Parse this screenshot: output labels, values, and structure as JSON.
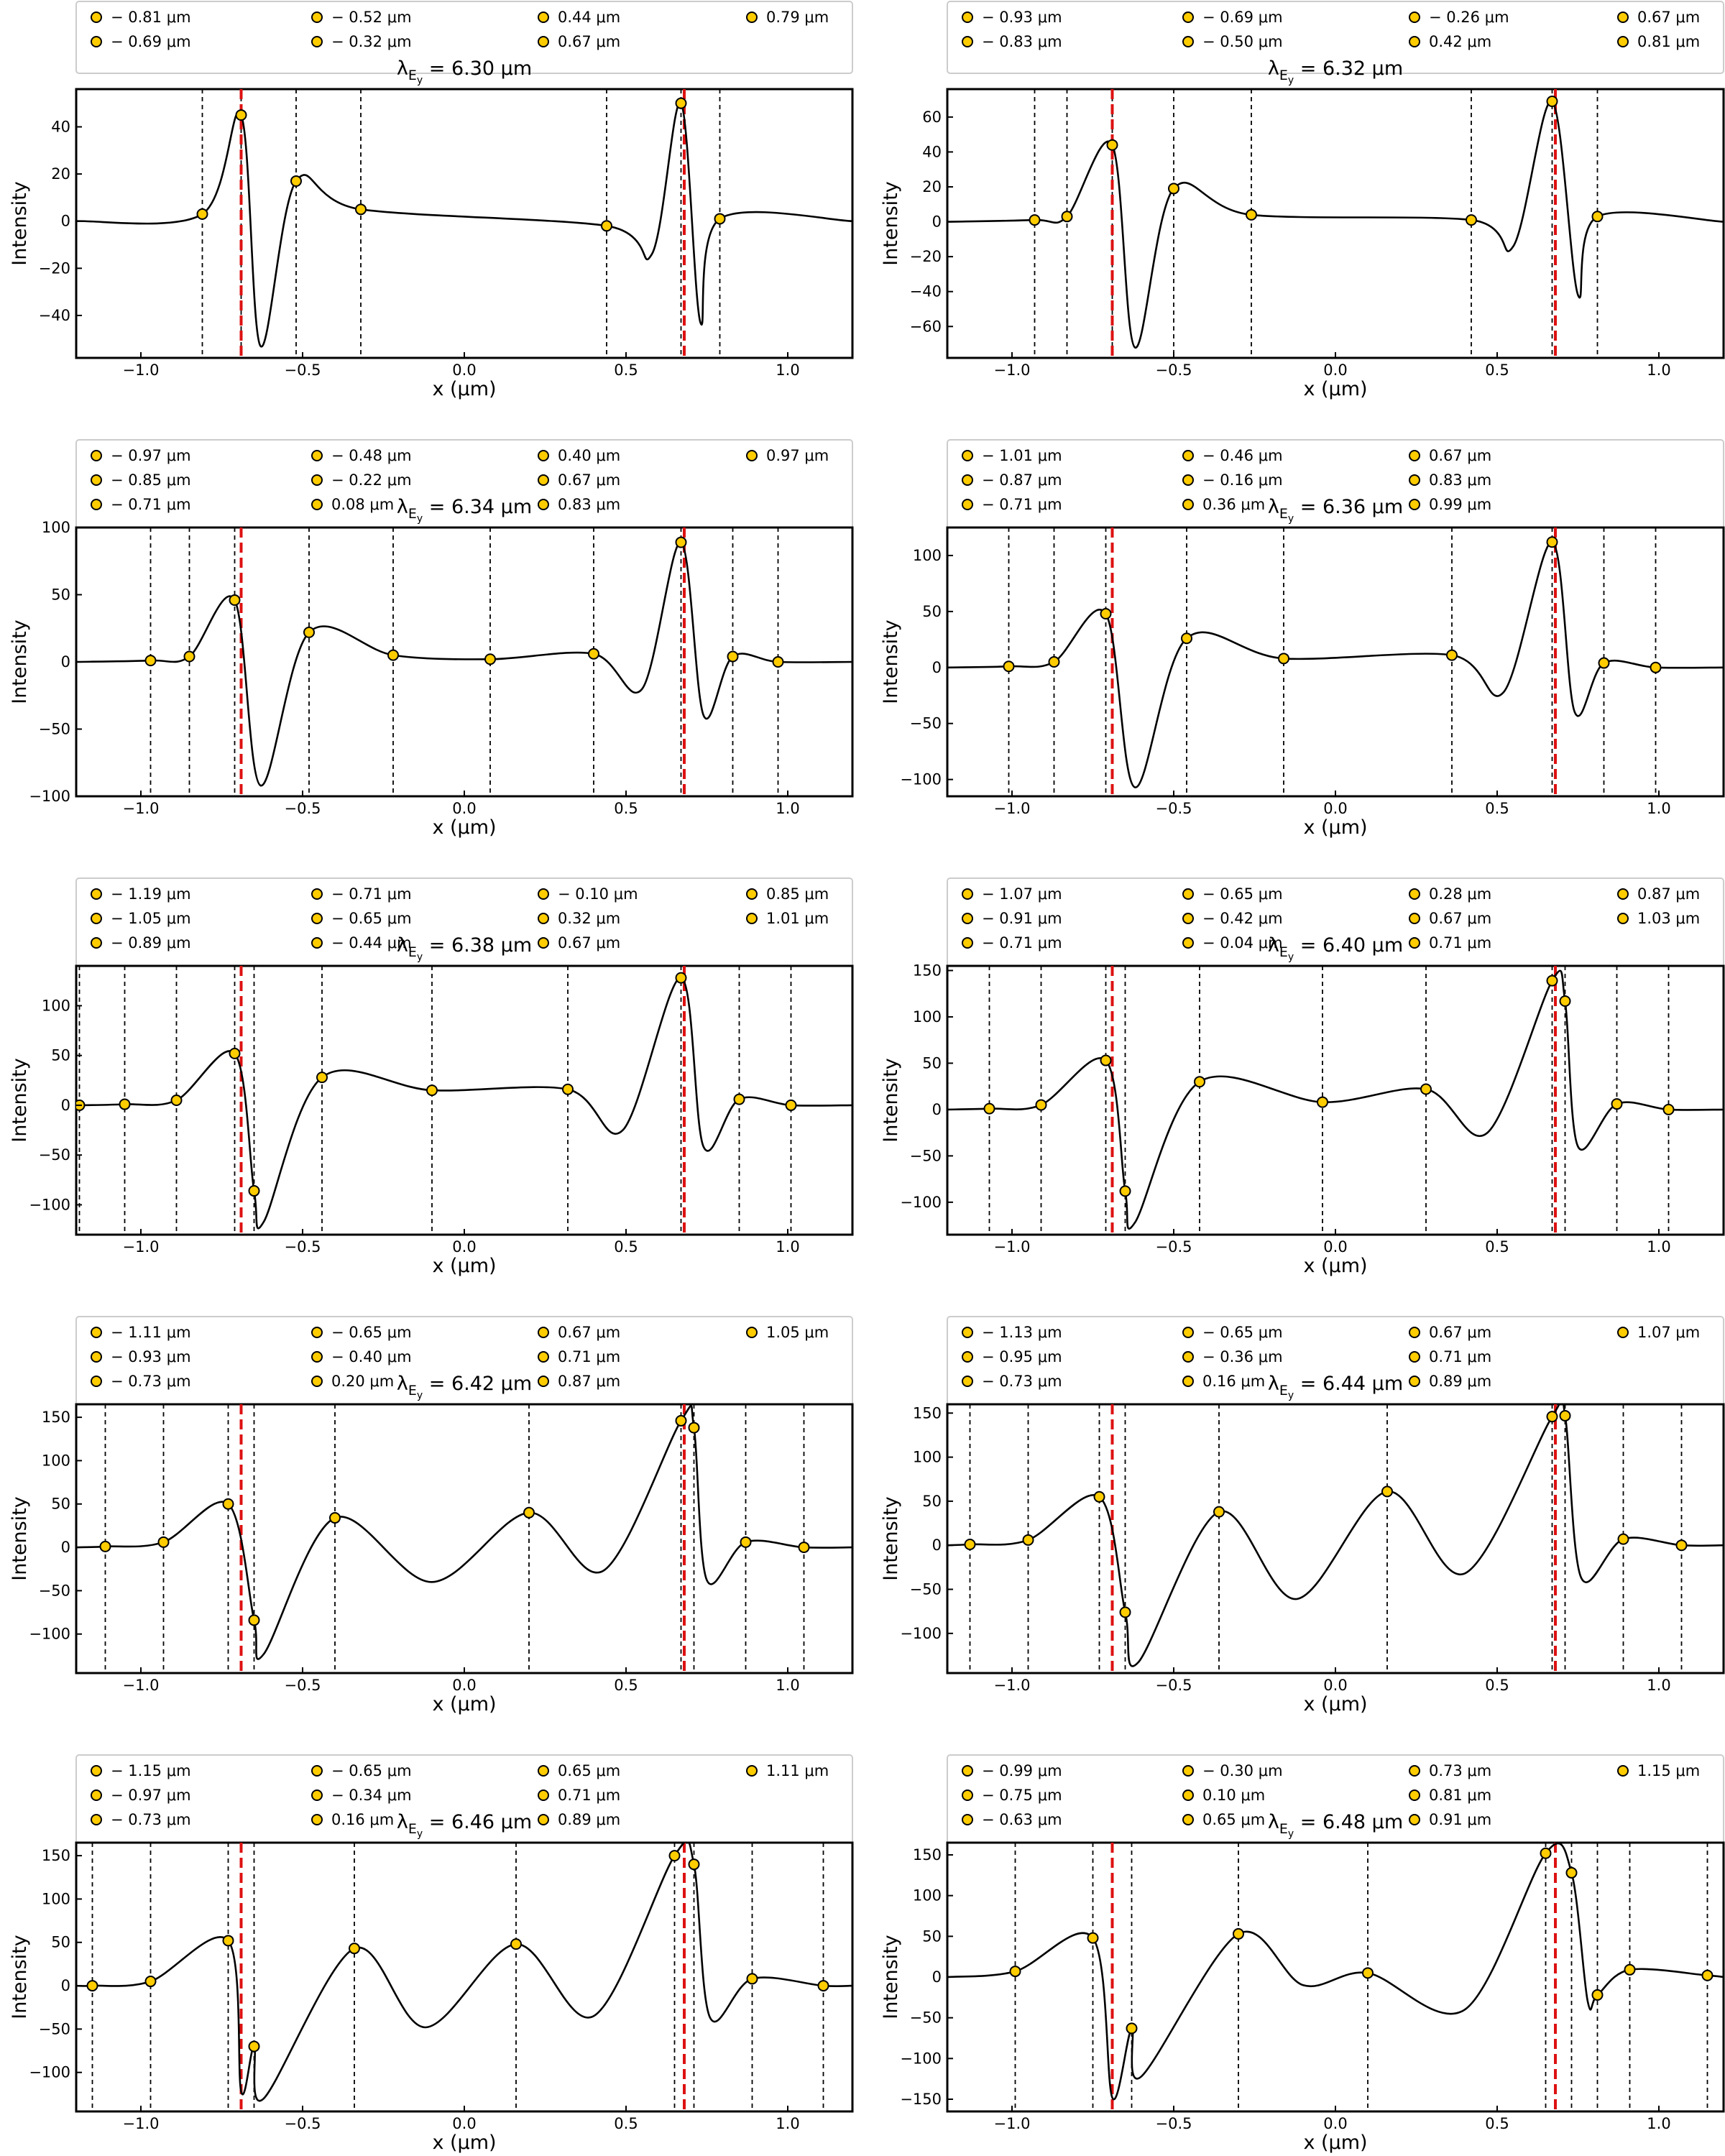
{
  "figure": {
    "title_prefix": "λ",
    "title_sub": "E",
    "title_subsub": "y",
    "title_eq": " = ",
    "unit": "μm",
    "xlabel": "x (μm)",
    "ylabel": "Intensity",
    "xticks": [
      -1.0,
      -0.5,
      0.0,
      0.5,
      1.0
    ],
    "xlim": [
      -1.2,
      1.2
    ],
    "colors": {
      "curve": "#000000",
      "marker": "#ffcc00",
      "marker_edge": "#000000",
      "red_line": "#dd1111",
      "grid_line": "#000000",
      "legend_border": "#cccccc"
    },
    "red_lines_x": [
      -0.69,
      0.68
    ]
  },
  "chart_data": [
    {
      "type": "line",
      "title_value": "6.30",
      "legend_labels": [
        "− 0.81 μm",
        "− 0.69 μm",
        "− 0.52 μm",
        "− 0.32 μm",
        "0.44 μm",
        "0.67 μm",
        "0.79 μm"
      ],
      "ylim": [
        -58,
        56
      ],
      "yticks": [
        -40,
        -20,
        0,
        20,
        40
      ],
      "points": [
        [
          -0.81,
          3
        ],
        [
          -0.69,
          45
        ],
        [
          -0.52,
          17
        ],
        [
          -0.32,
          5
        ],
        [
          0.44,
          -2
        ],
        [
          0.67,
          50
        ],
        [
          0.79,
          1
        ]
      ],
      "extrema": [
        [
          -0.63,
          -53
        ],
        [
          0.58,
          -14
        ],
        [
          0.73,
          -43
        ]
      ]
    },
    {
      "type": "line",
      "title_value": "6.32",
      "legend_labels": [
        "− 0.93 μm",
        "− 0.83 μm",
        "− 0.69 μm",
        "− 0.50 μm",
        "− 0.26 μm",
        "0.42 μm",
        "0.67 μm",
        "0.81 μm"
      ],
      "ylim": [
        -78,
        76
      ],
      "yticks": [
        -60,
        -40,
        -20,
        0,
        20,
        40,
        60
      ],
      "points": [
        [
          -0.93,
          1
        ],
        [
          -0.83,
          3
        ],
        [
          -0.69,
          44
        ],
        [
          -0.5,
          19
        ],
        [
          -0.26,
          4
        ],
        [
          0.42,
          1
        ],
        [
          0.67,
          69
        ],
        [
          0.81,
          3
        ]
      ],
      "extrema": [
        [
          -0.62,
          -72
        ],
        [
          0.55,
          -14
        ],
        [
          0.75,
          -42
        ]
      ]
    },
    {
      "type": "line",
      "title_value": "6.34",
      "legend_labels": [
        "− 0.97 μm",
        "− 0.85 μm",
        "− 0.71 μm",
        "− 0.48 μm",
        "− 0.22 μm",
        "0.08 μm",
        "0.40 μm",
        "0.67 μm",
        "0.83 μm",
        "0.97 μm"
      ],
      "ylim": [
        -100,
        100
      ],
      "yticks": [
        -100,
        -50,
        0,
        50,
        100
      ],
      "points": [
        [
          -0.97,
          1
        ],
        [
          -0.85,
          4
        ],
        [
          -0.71,
          46
        ],
        [
          -0.48,
          22
        ],
        [
          -0.22,
          5
        ],
        [
          0.08,
          2
        ],
        [
          0.4,
          6
        ],
        [
          0.67,
          89
        ],
        [
          0.83,
          4
        ],
        [
          0.97,
          0
        ]
      ],
      "extrema": [
        [
          -0.63,
          -92
        ],
        [
          0.55,
          -20
        ],
        [
          0.74,
          -40
        ]
      ]
    },
    {
      "type": "line",
      "title_value": "6.36",
      "legend_labels": [
        "− 1.01 μm",
        "− 0.87 μm",
        "− 0.71 μm",
        "− 0.46 μm",
        "− 0.16 μm",
        "0.36 μm",
        "0.67 μm",
        "0.83 μm",
        "0.99 μm"
      ],
      "ylim": [
        -115,
        125
      ],
      "yticks": [
        -100,
        -50,
        0,
        50,
        100
      ],
      "points": [
        [
          -1.01,
          1
        ],
        [
          -0.87,
          5
        ],
        [
          -0.71,
          48
        ],
        [
          -0.46,
          26
        ],
        [
          -0.16,
          8
        ],
        [
          0.36,
          11
        ],
        [
          0.67,
          112
        ],
        [
          0.83,
          4
        ],
        [
          0.99,
          0
        ]
      ],
      "extrema": [
        [
          -0.62,
          -107
        ],
        [
          0.52,
          -22
        ],
        [
          0.74,
          -40
        ]
      ]
    },
    {
      "type": "line",
      "title_value": "6.38",
      "legend_labels": [
        "− 1.19 μm",
        "− 1.05 μm",
        "− 0.89 μm",
        "− 0.71 μm",
        "− 0.65 μm",
        "− 0.44 μm",
        "− 0.10 μm",
        "0.32 μm",
        "0.67 μm",
        "0.85 μm",
        "1.01 μm"
      ],
      "ylim": [
        -130,
        140
      ],
      "yticks": [
        -100,
        -50,
        0,
        50,
        100
      ],
      "points": [
        [
          -1.19,
          0
        ],
        [
          -1.05,
          1
        ],
        [
          -0.89,
          5
        ],
        [
          -0.71,
          52
        ],
        [
          -0.65,
          -86
        ],
        [
          -0.44,
          28
        ],
        [
          -0.1,
          15
        ],
        [
          0.32,
          16
        ],
        [
          0.67,
          128
        ],
        [
          0.85,
          6
        ],
        [
          1.01,
          0
        ]
      ],
      "extrema": [
        [
          -0.62,
          -117
        ],
        [
          0.49,
          -25
        ],
        [
          0.74,
          -42
        ]
      ]
    },
    {
      "type": "line",
      "title_value": "6.40",
      "legend_labels": [
        "− 1.07 μm",
        "− 0.91 μm",
        "− 0.71 μm",
        "− 0.65 μm",
        "− 0.42 μm",
        "− 0.04 μm",
        "0.28 μm",
        "0.67 μm",
        "0.71 μm",
        "0.87 μm",
        "1.03 μm"
      ],
      "ylim": [
        -135,
        155
      ],
      "yticks": [
        -100,
        -50,
        0,
        50,
        100,
        150
      ],
      "points": [
        [
          -1.07,
          1
        ],
        [
          -0.91,
          5
        ],
        [
          -0.71,
          53
        ],
        [
          -0.65,
          -88
        ],
        [
          -0.42,
          30
        ],
        [
          -0.04,
          8
        ],
        [
          0.28,
          22
        ],
        [
          0.67,
          139
        ],
        [
          0.71,
          117
        ],
        [
          0.87,
          6
        ],
        [
          1.03,
          0
        ]
      ],
      "extrema": [
        [
          -0.62,
          -122
        ],
        [
          0.47,
          -25
        ],
        [
          0.75,
          -40
        ]
      ]
    },
    {
      "type": "line",
      "title_value": "6.42",
      "legend_labels": [
        "− 1.11 μm",
        "− 0.93 μm",
        "− 0.73 μm",
        "− 0.65 μm",
        "− 0.40 μm",
        "0.20 μm",
        "0.67 μm",
        "0.71 μm",
        "0.87 μm",
        "1.05 μm"
      ],
      "ylim": [
        -145,
        165
      ],
      "yticks": [
        -100,
        -50,
        0,
        50,
        100,
        150
      ],
      "points": [
        [
          -1.11,
          1
        ],
        [
          -0.93,
          6
        ],
        [
          -0.73,
          50
        ],
        [
          -0.65,
          -84
        ],
        [
          -0.4,
          34
        ],
        [
          0.2,
          40
        ],
        [
          0.67,
          146
        ],
        [
          0.71,
          138
        ],
        [
          0.87,
          6
        ],
        [
          1.05,
          0
        ]
      ],
      "extrema": [
        [
          -0.62,
          -123
        ],
        [
          -0.1,
          -40
        ],
        [
          0.43,
          -27
        ],
        [
          0.75,
          -38
        ]
      ]
    },
    {
      "type": "line",
      "title_value": "6.44",
      "legend_labels": [
        "− 1.13 μm",
        "− 0.95 μm",
        "− 0.73 μm",
        "− 0.65 μm",
        "− 0.36 μm",
        "0.16 μm",
        "0.67 μm",
        "0.71 μm",
        "0.89 μm",
        "1.07 μm"
      ],
      "ylim": [
        -145,
        160
      ],
      "yticks": [
        -100,
        -50,
        0,
        50,
        100,
        150
      ],
      "points": [
        [
          -1.13,
          1
        ],
        [
          -0.95,
          6
        ],
        [
          -0.73,
          55
        ],
        [
          -0.65,
          -76
        ],
        [
          -0.36,
          38
        ],
        [
          0.16,
          61
        ],
        [
          0.67,
          146
        ],
        [
          0.71,
          147
        ],
        [
          0.89,
          7
        ],
        [
          1.07,
          0
        ]
      ],
      "extrema": [
        [
          -0.61,
          -133
        ],
        [
          -0.12,
          -61
        ],
        [
          0.4,
          -32
        ],
        [
          0.76,
          -37
        ]
      ]
    },
    {
      "type": "line",
      "title_value": "6.46",
      "legend_labels": [
        "− 1.15 μm",
        "− 0.97 μm",
        "− 0.73 μm",
        "− 0.65 μm",
        "− 0.34 μm",
        "0.16 μm",
        "0.65 μm",
        "0.71 μm",
        "0.89 μm",
        "1.11 μm"
      ],
      "ylim": [
        -145,
        165
      ],
      "yticks": [
        -100,
        -50,
        0,
        50,
        100,
        150
      ],
      "points": [
        [
          -1.15,
          0
        ],
        [
          -0.97,
          5
        ],
        [
          -0.73,
          52
        ],
        [
          -0.65,
          -70
        ],
        [
          -0.34,
          43
        ],
        [
          0.16,
          48
        ],
        [
          0.65,
          150
        ],
        [
          0.71,
          140
        ],
        [
          0.89,
          8
        ],
        [
          1.11,
          0
        ]
      ],
      "extrema": [
        [
          -0.69,
          -122
        ],
        [
          -0.62,
          -130
        ],
        [
          -0.12,
          -48
        ],
        [
          0.4,
          -35
        ],
        [
          0.76,
          -37
        ]
      ]
    },
    {
      "type": "line",
      "title_value": "6.48",
      "legend_labels": [
        "− 0.99 μm",
        "− 0.75 μm",
        "− 0.63 μm",
        "− 0.30 μm",
        "0.10 μm",
        "0.65 μm",
        "0.73 μm",
        "0.81 μm",
        "0.91 μm",
        "1.15 μm"
      ],
      "ylim": [
        -165,
        165
      ],
      "yticks": [
        -150,
        -100,
        -50,
        0,
        50,
        100,
        150
      ],
      "points": [
        [
          -0.99,
          7
        ],
        [
          -0.75,
          48
        ],
        [
          -0.63,
          -63
        ],
        [
          -0.3,
          53
        ],
        [
          0.1,
          5
        ],
        [
          0.65,
          152
        ],
        [
          0.73,
          128
        ],
        [
          0.81,
          -22
        ],
        [
          0.91,
          9
        ],
        [
          1.15,
          2
        ]
      ],
      "extrema": [
        [
          -0.69,
          -148
        ],
        [
          -0.6,
          -122
        ],
        [
          -0.1,
          -10
        ],
        [
          0.4,
          -40
        ],
        [
          0.78,
          -30
        ]
      ]
    }
  ]
}
